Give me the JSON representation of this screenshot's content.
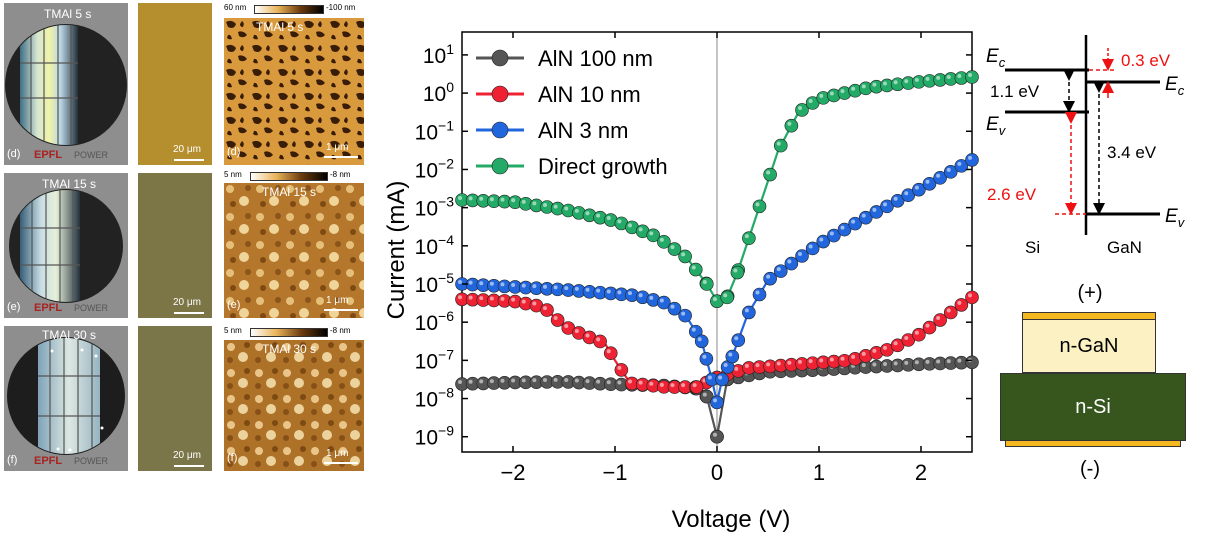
{
  "panels": [
    {
      "wafer": {
        "label": "TMAl 5 s",
        "panel_letter": "(d)",
        "logo_left": "EPFL",
        "logo_right": "POWER"
      },
      "optical": {
        "scale": "20 μm",
        "color": "#b58f2e"
      },
      "afm": {
        "label": "TMAl 5 s",
        "panel_letter": "(d)",
        "scale": "1 μm",
        "colorbar_max": "60 nm",
        "colorbar_min": "-100 nm"
      }
    },
    {
      "wafer": {
        "label": "TMAl 15 s",
        "panel_letter": "(e)",
        "logo_left": "EPFL",
        "logo_right": "POWER"
      },
      "optical": {
        "scale": "20 μm",
        "color": "#7c7647"
      },
      "afm": {
        "label": "TMAl 15 s",
        "panel_letter": "(e)",
        "scale": "1 μm",
        "colorbar_max": "5 nm",
        "colorbar_min": "-8 nm"
      }
    },
    {
      "wafer": {
        "label": "TMAl 30 s",
        "panel_letter": "(f)",
        "logo_left": "EPFL",
        "logo_right": "POWER"
      },
      "optical": {
        "scale": "20 μm",
        "color": "#7b7649"
      },
      "afm": {
        "label": "TMAl 30 s",
        "panel_letter": "(f)",
        "scale": "1 μm",
        "colorbar_max": "5 nm",
        "colorbar_min": "-8 nm"
      }
    }
  ],
  "chart_data": {
    "type": "line",
    "title": "",
    "xlabel": "Voltage (V)",
    "ylabel": "Current (mA)",
    "y_scale": "log",
    "xlim": [
      -2.5,
      2.5
    ],
    "ylim_exp": [
      -9.4,
      1.6
    ],
    "x_ticks": [
      "−2",
      "−1",
      "0",
      "1",
      "2"
    ],
    "x_tick_values": [
      -2,
      -1,
      0,
      1,
      2
    ],
    "y_tick_exponents": [
      1,
      0,
      -1,
      -2,
      -3,
      -4,
      -5,
      -6,
      -7,
      -8,
      -9
    ],
    "y_tick_base": "10",
    "legend_position": "top-left",
    "series": [
      {
        "name": "AlN 100 nm",
        "color": "#555555",
        "log10_points": [
          [
            -2.5,
            -7.62
          ],
          [
            -2.0,
            -7.58
          ],
          [
            -1.5,
            -7.56
          ],
          [
            -1.0,
            -7.63
          ],
          [
            -0.5,
            -7.66
          ],
          [
            -0.2,
            -7.74
          ],
          [
            -0.1,
            -7.95
          ],
          [
            0.0,
            -9.0
          ],
          [
            0.1,
            -7.5
          ],
          [
            0.5,
            -7.3
          ],
          [
            1.0,
            -7.25
          ],
          [
            1.5,
            -7.17
          ],
          [
            2.0,
            -7.1
          ],
          [
            2.5,
            -7.05
          ]
        ]
      },
      {
        "name": "AlN 10 nm",
        "color": "#ee2233",
        "log10_points": [
          [
            -2.5,
            -5.4
          ],
          [
            -2.0,
            -5.45
          ],
          [
            -1.7,
            -5.6
          ],
          [
            -1.5,
            -6.1
          ],
          [
            -1.3,
            -6.35
          ],
          [
            -1.1,
            -6.55
          ],
          [
            -1.0,
            -7.0
          ],
          [
            -0.85,
            -7.6
          ],
          [
            -0.5,
            -7.7
          ],
          [
            -0.2,
            -7.7
          ],
          [
            0.0,
            -7.45
          ],
          [
            0.3,
            -7.2
          ],
          [
            0.8,
            -7.1
          ],
          [
            1.3,
            -7.0
          ],
          [
            1.7,
            -6.7
          ],
          [
            2.0,
            -6.3
          ],
          [
            2.5,
            -5.35
          ]
        ]
      },
      {
        "name": "AlN 3 nm",
        "color": "#2266dd",
        "log10_points": [
          [
            -2.5,
            -5.0
          ],
          [
            -1.5,
            -5.15
          ],
          [
            -0.8,
            -5.3
          ],
          [
            -0.5,
            -5.5
          ],
          [
            -0.3,
            -5.85
          ],
          [
            -0.15,
            -6.5
          ],
          [
            -0.05,
            -7.5
          ],
          [
            0.0,
            -8.1
          ],
          [
            0.05,
            -7.5
          ],
          [
            0.15,
            -6.9
          ],
          [
            0.3,
            -5.8
          ],
          [
            0.5,
            -4.9
          ],
          [
            1.0,
            -3.95
          ],
          [
            1.5,
            -3.2
          ],
          [
            2.0,
            -2.5
          ],
          [
            2.5,
            -1.75
          ]
        ]
      },
      {
        "name": "Direct growth",
        "color": "#22aa66",
        "log10_points": [
          [
            -2.5,
            -2.8
          ],
          [
            -2.0,
            -2.85
          ],
          [
            -1.5,
            -3.05
          ],
          [
            -1.0,
            -3.35
          ],
          [
            -0.6,
            -3.75
          ],
          [
            -0.3,
            -4.3
          ],
          [
            -0.1,
            -5.0
          ],
          [
            0.0,
            -5.45
          ],
          [
            0.1,
            -5.35
          ],
          [
            0.2,
            -4.7
          ],
          [
            0.4,
            -3.1
          ],
          [
            0.6,
            -1.5
          ],
          [
            0.8,
            -0.5
          ],
          [
            1.0,
            -0.15
          ],
          [
            1.5,
            0.15
          ],
          [
            2.0,
            0.3
          ],
          [
            2.5,
            0.42
          ]
        ]
      }
    ]
  },
  "band": {
    "ec_left": "E",
    "ec_left_sub": "c",
    "ev_left": "E",
    "ev_left_sub": "v",
    "ec_right": "E",
    "ec_right_sub": "c",
    "ev_right": "E",
    "ev_right_sub": "v",
    "si_gap": "1.1 eV",
    "gan_gap": "3.4 eV",
    "delta_ec": "0.3 eV",
    "delta_ev": "2.6 eV",
    "si_label": "Si",
    "gan_label": "GaN",
    "red_color": "#ee1111"
  },
  "device": {
    "top_label": "(+)",
    "bottom_label": "(-)",
    "gan_layer": "n-GaN",
    "si_layer": "n-Si",
    "gan_color": "#fbf1c2",
    "si_color": "#36561d",
    "contact_color": "#f5b820"
  }
}
